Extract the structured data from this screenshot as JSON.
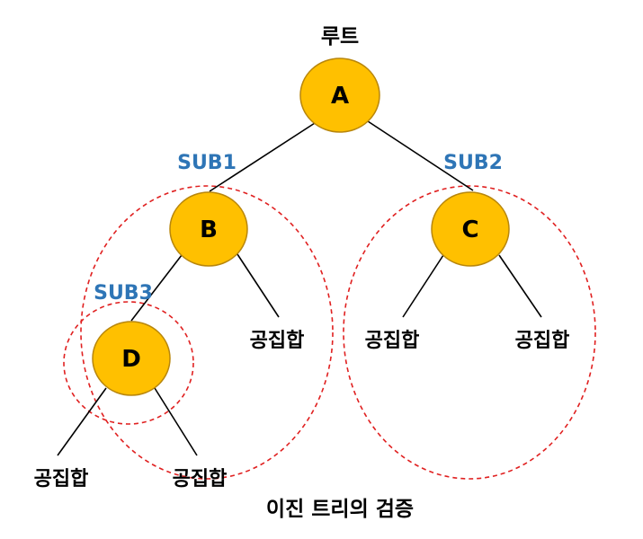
{
  "root_label": "루트",
  "caption": "이진 트리의 검증",
  "empty_set_label": "공집합",
  "colors": {
    "node_fill": "#FFC000",
    "node_stroke": "#B8860B",
    "subtree_outline": "#E02020",
    "sub_label": "#2E75B6"
  },
  "nodes": [
    {
      "id": "A",
      "label": "A"
    },
    {
      "id": "B",
      "label": "B"
    },
    {
      "id": "C",
      "label": "C"
    },
    {
      "id": "D",
      "label": "D"
    }
  ],
  "subtrees": [
    {
      "id": "SUB1",
      "label": "SUB1",
      "root": "B"
    },
    {
      "id": "SUB2",
      "label": "SUB2",
      "root": "C"
    },
    {
      "id": "SUB3",
      "label": "SUB3",
      "root": "D"
    }
  ],
  "empty_leaves": [
    {
      "id": "e1",
      "parent": "B",
      "label": "공집합"
    },
    {
      "id": "e2",
      "parent": "C",
      "label": "공집합"
    },
    {
      "id": "e3",
      "parent": "C",
      "label": "공집합"
    },
    {
      "id": "e4",
      "parent": "D",
      "label": "공집합"
    },
    {
      "id": "e5",
      "parent": "D",
      "label": "공집합"
    }
  ]
}
